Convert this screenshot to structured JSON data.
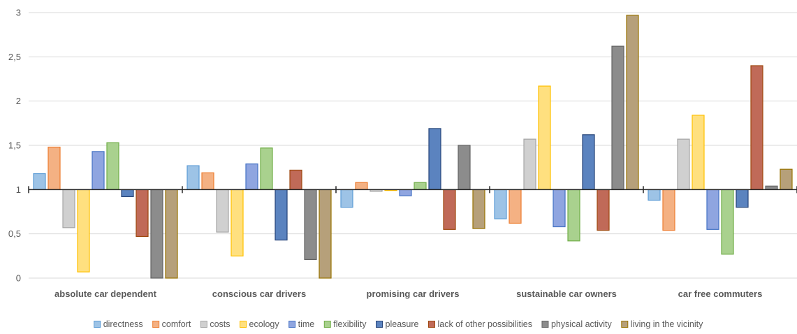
{
  "chart_data": {
    "type": "bar",
    "baseline": 1,
    "ylim": [
      0,
      3
    ],
    "yticks": [
      "0",
      "0,5",
      "1",
      "1,5",
      "2",
      "2,5",
      "3"
    ],
    "grid": true,
    "legend_position": "bottom",
    "categories": [
      "absolute car dependent",
      "conscious car drivers",
      "promising car drivers",
      "sustainable car owners",
      "car free commuters"
    ],
    "series": [
      {
        "name": "directness",
        "color": "#9DC3E6",
        "stroke": "#5B9BD5",
        "values": [
          1.18,
          1.27,
          0.8,
          0.67,
          0.88
        ]
      },
      {
        "name": "comfort",
        "color": "#F4B183",
        "stroke": "#ED7D31",
        "values": [
          1.48,
          1.19,
          1.08,
          0.62,
          0.54
        ]
      },
      {
        "name": "costs",
        "color": "#D0D0D0",
        "stroke": "#A5A5A5",
        "values": [
          0.57,
          0.52,
          0.98,
          1.57,
          1.57
        ]
      },
      {
        "name": "ecology",
        "color": "#FFE07F",
        "stroke": "#FFC000",
        "values": [
          0.07,
          0.25,
          0.99,
          2.17,
          1.84
        ]
      },
      {
        "name": "time",
        "color": "#8FA5E0",
        "stroke": "#4472C4",
        "values": [
          1.43,
          1.29,
          0.93,
          0.58,
          0.55
        ]
      },
      {
        "name": "flexibility",
        "color": "#A9D18E",
        "stroke": "#70AD47",
        "values": [
          1.53,
          1.47,
          1.08,
          0.42,
          0.27
        ]
      },
      {
        "name": "pleasure",
        "color": "#5B83BF",
        "stroke": "#264478",
        "values": [
          0.92,
          0.43,
          1.69,
          1.62,
          0.8
        ]
      },
      {
        "name": "lack of other possibilities",
        "color": "#C06A58",
        "stroke": "#9E480E",
        "values": [
          0.47,
          1.22,
          0.55,
          0.54,
          2.4
        ]
      },
      {
        "name": "physical activity",
        "color": "#8C8C8C",
        "stroke": "#636363",
        "values": [
          0.0,
          0.21,
          1.5,
          2.62,
          1.04
        ]
      },
      {
        "name": "living in the vicinity",
        "color": "#B6A07A",
        "stroke": "#997300",
        "values": [
          0.0,
          0.0,
          0.56,
          2.97,
          1.23
        ]
      }
    ]
  }
}
